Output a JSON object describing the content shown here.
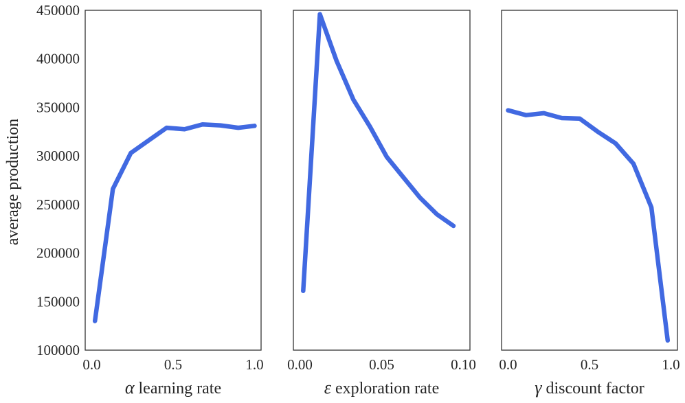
{
  "chart_data": {
    "type": "line",
    "ylabel": "average production",
    "ylim": [
      100000,
      450000
    ],
    "yticks": [
      "100000",
      "150000",
      "200000",
      "250000",
      "300000",
      "350000",
      "400000",
      "450000"
    ],
    "ytick_values": [
      100000,
      150000,
      200000,
      250000,
      300000,
      350000,
      400000,
      450000
    ],
    "grid": false,
    "line_color": "#4169e1",
    "panels": [
      {
        "xlabel_symbol": "α",
        "xlabel_text": "learning rate",
        "xlim": [
          -0.04,
          1.04
        ],
        "xticks": [
          "0.0",
          "0.5",
          "1.0"
        ],
        "xtick_values": [
          0.0,
          0.5,
          1.0
        ],
        "x": [
          0.02,
          0.13,
          0.24,
          0.35,
          0.46,
          0.57,
          0.68,
          0.79,
          0.9,
          1.0
        ],
        "y": [
          130000,
          266000,
          303000,
          316000,
          329000,
          327500,
          332500,
          331500,
          329000,
          331000
        ]
      },
      {
        "xlabel_symbol": "ε",
        "xlabel_text": "exploration rate",
        "xlim": [
          -0.004,
          0.104
        ],
        "xticks": [
          "0.00",
          "0.05",
          "0.10"
        ],
        "xtick_values": [
          0.0,
          0.05,
          0.1
        ],
        "x": [
          0.002,
          0.0122,
          0.0224,
          0.0327,
          0.0429,
          0.0531,
          0.0633,
          0.0735,
          0.0837,
          0.0939
        ],
        "y": [
          161000,
          446000,
          398000,
          358000,
          330000,
          299000,
          278000,
          257000,
          240000,
          228000
        ]
      },
      {
        "xlabel_symbol": "γ",
        "xlabel_text": "discount factor",
        "xlim": [
          -0.04,
          1.04
        ],
        "xticks": [
          "0.0",
          "0.5",
          "1.0"
        ],
        "xtick_values": [
          0.0,
          0.5,
          1.0
        ],
        "x": [
          0.0,
          0.11,
          0.22,
          0.33,
          0.44,
          0.55,
          0.66,
          0.77,
          0.88,
          0.98
        ],
        "y": [
          347000,
          342000,
          344000,
          339000,
          338500,
          325000,
          313000,
          292000,
          247000,
          110000
        ]
      }
    ]
  }
}
